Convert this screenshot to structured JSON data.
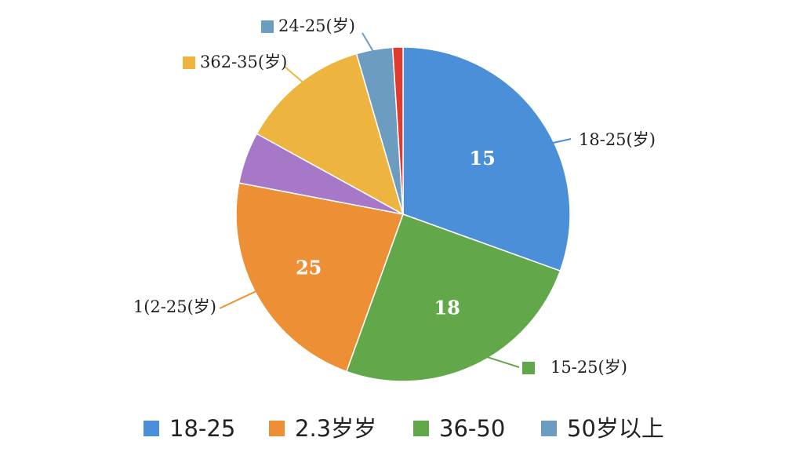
{
  "chart_data": {
    "type": "pie",
    "slices": [
      {
        "value": 30.5,
        "label": "15",
        "callout": "18-25(岁)",
        "color": "#4a8fd8"
      },
      {
        "value": 25.0,
        "label": "18",
        "callout": "15-25(岁)",
        "color": "#62a84a"
      },
      {
        "value": 22.5,
        "label": "25",
        "callout": "1(2-25(岁)",
        "color": "#ec8f35"
      },
      {
        "value": 5.0,
        "label": "",
        "callout": "",
        "color": "#a878c8"
      },
      {
        "value": 12.5,
        "label": "",
        "callout": "362-35(岁)",
        "color": "#edb43f"
      },
      {
        "value": 3.5,
        "label": "",
        "callout": "24-25(岁)",
        "color": "#6c9cc0"
      },
      {
        "value": 1.0,
        "label": "",
        "callout": "",
        "color": "#e03b2e"
      }
    ],
    "legend": {
      "placement": "bottom",
      "entries": [
        {
          "name": "18-25",
          "color": "#4a8fd8"
        },
        {
          "name": "2.3岁岁",
          "color": "#ec8f35"
        },
        {
          "name": "36-50",
          "color": "#62a84a"
        },
        {
          "name": "50岁以上",
          "color": "#6c9cc0"
        }
      ]
    }
  }
}
